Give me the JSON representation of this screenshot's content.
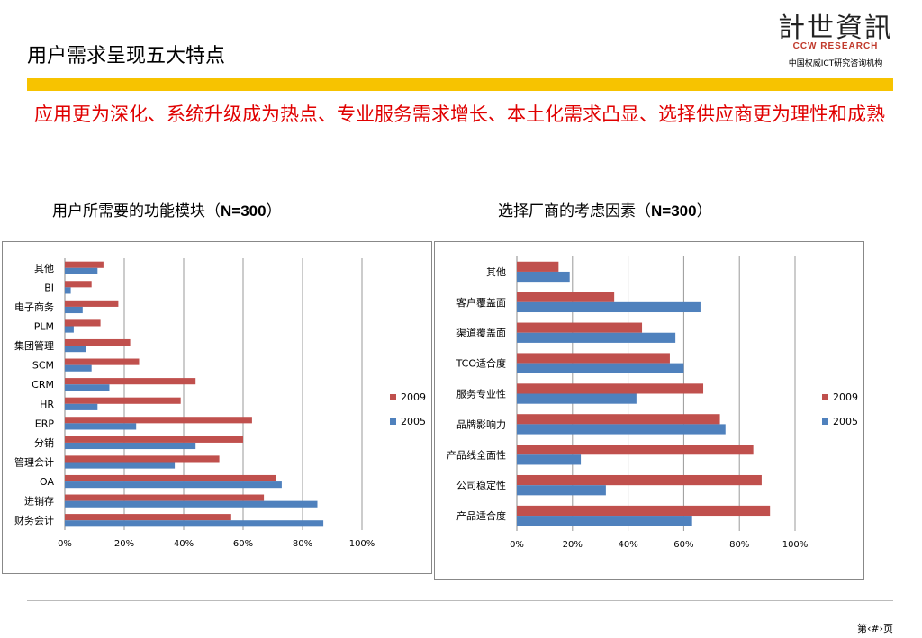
{
  "slide": {
    "title": "用户需求呈现五大特点",
    "subtitle": "应用更为深化、系统升级成为热点、专业服务需求增长、本土化需求凸显、选择供应商更为理性和成熟",
    "page_label": "第‹#›页"
  },
  "logo": {
    "glyphs": "計世資訊",
    "brand": "CCW RESEARCH",
    "tagline": "中国权威ICT研究咨询机构"
  },
  "colors": {
    "series_2009": "#c0504d",
    "series_2005": "#4f81bd",
    "gold_bar": "#f7c300",
    "subtitle_red": "#e00000"
  },
  "charts": {
    "left_title_prefix": "用户所需要的功能模块（",
    "left_title_n": "N=300",
    "left_title_suffix": "）",
    "right_title_prefix": "选择厂商的考虑因素（",
    "right_title_n": "N=300",
    "right_title_suffix": "）"
  },
  "chart_data": [
    {
      "type": "bar",
      "orientation": "horizontal",
      "title": "用户所需要的功能模块（N=300）",
      "categories": [
        "其他",
        "BI",
        "电子商务",
        "PLM",
        "集团管理",
        "SCM",
        "CRM",
        "HR",
        "ERP",
        "分销",
        "管理会计",
        "OA",
        "进销存",
        "财务会计"
      ],
      "series": [
        {
          "name": "2009",
          "values": [
            13,
            9,
            18,
            12,
            22,
            25,
            44,
            39,
            63,
            60,
            52,
            71,
            67,
            56
          ]
        },
        {
          "name": "2005",
          "values": [
            11,
            2,
            6,
            3,
            7,
            9,
            15,
            11,
            24,
            44,
            37,
            73,
            85,
            87
          ]
        }
      ],
      "xlim": [
        0,
        100
      ],
      "xticks": [
        "0%",
        "20%",
        "40%",
        "60%",
        "80%",
        "100%"
      ],
      "grid": true,
      "legend_position": "right"
    },
    {
      "type": "bar",
      "orientation": "horizontal",
      "title": "选择厂商的考虑因素（N=300）",
      "categories": [
        "其他",
        "客户覆盖面",
        "渠道覆盖面",
        "TCO适合度",
        "服务专业性",
        "品牌影响力",
        "产品线全面性",
        "公司稳定性",
        "产品适合度"
      ],
      "series": [
        {
          "name": "2009",
          "values": [
            15,
            35,
            45,
            55,
            67,
            73,
            85,
            88,
            91
          ]
        },
        {
          "name": "2005",
          "values": [
            19,
            66,
            57,
            60,
            43,
            75,
            23,
            32,
            63
          ]
        }
      ],
      "xlim": [
        0,
        100
      ],
      "xticks": [
        "0%",
        "20%",
        "40%",
        "60%",
        "80%",
        "100%"
      ],
      "grid": true,
      "legend_position": "right"
    }
  ]
}
